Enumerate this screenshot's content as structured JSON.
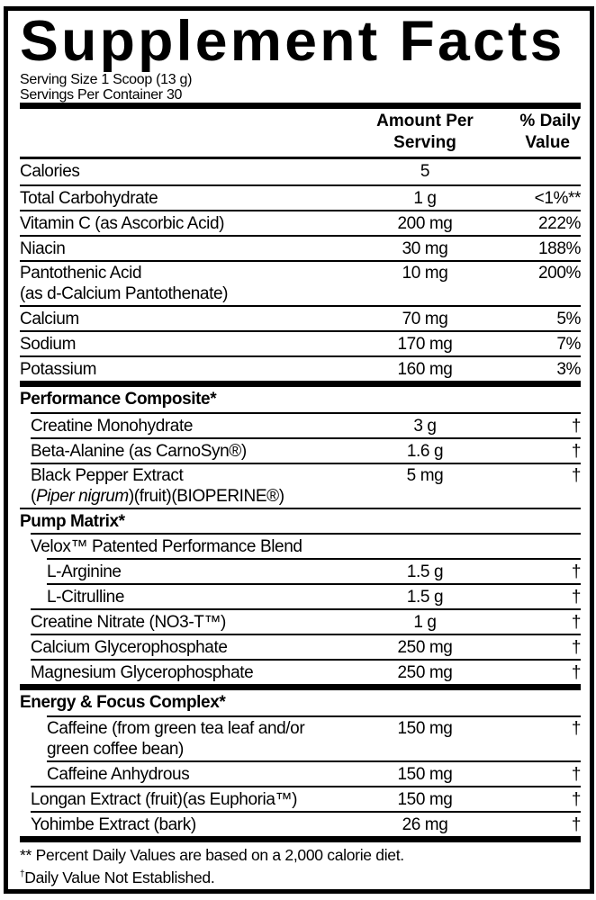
{
  "title": "Supplement Facts",
  "serving_size": "Serving Size 1 Scoop (13 g)",
  "servings_per_container": "Servings Per Container 30",
  "header": {
    "amount_line1": "Amount Per",
    "amount_line2": "Serving",
    "dv_line1": "% Daily",
    "dv_line2": "Value"
  },
  "sections": [
    {
      "rows": [
        {
          "name": "Calories",
          "amount": "5",
          "dv": ""
        },
        {
          "name": "Total Carbohydrate",
          "amount": "1 g",
          "dv": "<1%**"
        },
        {
          "name": "Vitamin C (as Ascorbic Acid)",
          "amount": "200 mg",
          "dv": "222%"
        },
        {
          "name": "Niacin",
          "amount": "30 mg",
          "dv": "188%"
        },
        {
          "name": "Pantothenic Acid",
          "name2": "(as d-Calcium Pantothenate)",
          "amount": "10 mg",
          "dv": "200%"
        },
        {
          "name": "Calcium",
          "amount": "70 mg",
          "dv": "5%"
        },
        {
          "name": "Sodium",
          "amount": "170 mg",
          "dv": "7%"
        },
        {
          "name": "Potassium",
          "amount": "160 mg",
          "dv": "3%"
        }
      ]
    },
    {
      "rows": [
        {
          "name": "Performance Composite*",
          "heading": true
        },
        {
          "name": "Creatine Monohydrate",
          "amount": "3 g",
          "dv": "†",
          "indent": 1
        },
        {
          "name": "Beta-Alanine (as CarnoSyn®)",
          "amount": "1.6 g",
          "dv": "†",
          "indent": 1
        },
        {
          "name": "Black Pepper Extract",
          "name2_parts": [
            {
              "text": "(",
              "italic": false
            },
            {
              "text": "Piper nigrum",
              "italic": true
            },
            {
              "text": ")(fruit)(BIOPERINE®)",
              "italic": false
            }
          ],
          "amount": "5 mg",
          "dv": "†",
          "indent": 1
        },
        {
          "name": "Pump Matrix*",
          "heading": true
        },
        {
          "name": "Velox™ Patented Performance Blend",
          "amount": "",
          "dv": "",
          "indent": 1
        },
        {
          "name": "L-Arginine",
          "amount": "1.5 g",
          "dv": "†",
          "indent": 2
        },
        {
          "name": "L-Citrulline",
          "amount": "1.5 g",
          "dv": "†",
          "indent": 2
        },
        {
          "name": "Creatine Nitrate (NO3-T™)",
          "amount": "1 g",
          "dv": "†",
          "indent": 1
        },
        {
          "name": "Calcium Glycerophosphate",
          "amount": "250 mg",
          "dv": "†",
          "indent": 1
        },
        {
          "name": "Magnesium Glycerophosphate",
          "amount": "250 mg",
          "dv": "†",
          "indent": 1
        }
      ]
    },
    {
      "rows": [
        {
          "name": "Energy & Focus Complex*",
          "heading": true
        },
        {
          "name": "Caffeine (from green tea leaf and/or",
          "name2": "green coffee bean)",
          "amount": "150 mg",
          "dv": "†",
          "indent": 2
        },
        {
          "name": "Caffeine Anhydrous",
          "amount": "150 mg",
          "dv": "†",
          "indent": 2
        },
        {
          "name": "Longan Extract (fruit)(as Euphoria™)",
          "amount": "150 mg",
          "dv": "†",
          "indent": 1
        },
        {
          "name": "Yohimbe Extract (bark)",
          "amount": "26 mg",
          "dv": "†",
          "indent": 1
        }
      ]
    }
  ],
  "footnotes": {
    "percent": "** Percent Daily Values are based on a 2,000 calorie diet.",
    "dagger_mark": "†",
    "dagger": "Daily Value Not Established."
  }
}
